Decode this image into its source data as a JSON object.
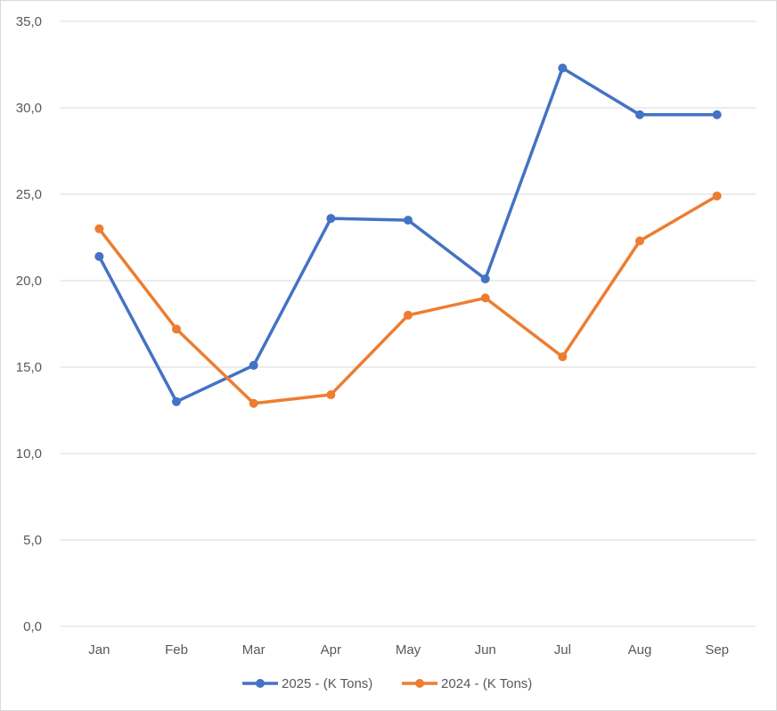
{
  "chart_data": {
    "type": "line",
    "categories": [
      "Jan",
      "Feb",
      "Mar",
      "Apr",
      "May",
      "Jun",
      "Jul",
      "Aug",
      "Sep"
    ],
    "series": [
      {
        "name": "2025 - (K Tons)",
        "color": "#4472c4",
        "values": [
          21.4,
          13.0,
          15.1,
          23.6,
          23.5,
          20.1,
          32.3,
          29.6,
          29.6
        ]
      },
      {
        "name": "2024 - (K Tons)",
        "color": "#ed7d31",
        "values": [
          23.0,
          17.2,
          12.9,
          13.4,
          18.0,
          19.0,
          15.6,
          22.3,
          24.9
        ]
      }
    ],
    "ylim": [
      0,
      35
    ],
    "yticks": [
      "0,0",
      "5,0",
      "10,0",
      "15,0",
      "20,0",
      "25,0",
      "30,0",
      "35,0"
    ],
    "grid": true,
    "legend_position": "bottom"
  }
}
